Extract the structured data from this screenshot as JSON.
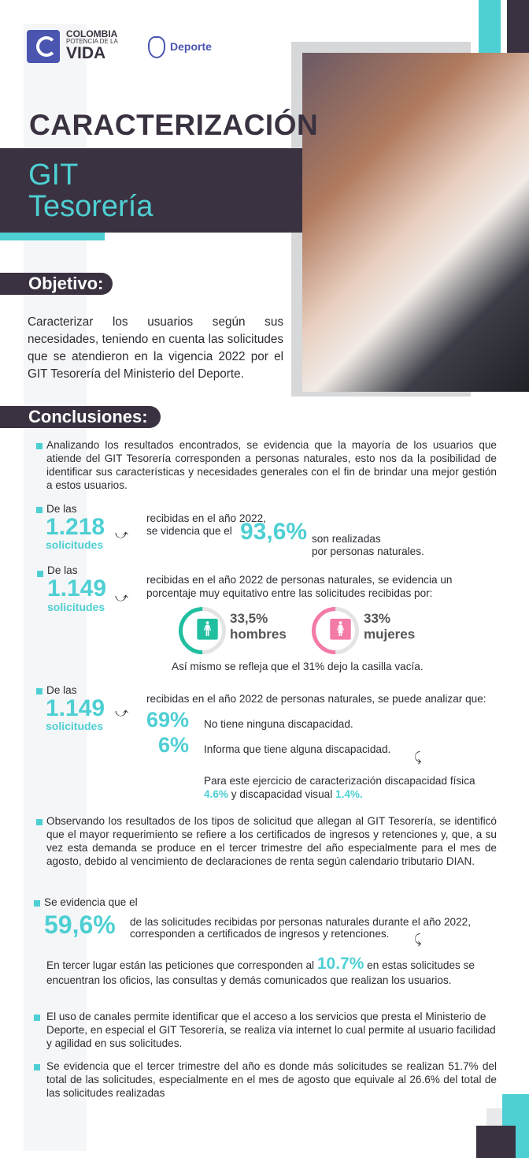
{
  "header": {
    "logo_line1": "COLOMBIA",
    "logo_line2": "POTENCIA DE LA",
    "logo_line3": "VIDA",
    "ministry": "Deporte"
  },
  "title": "CARACTERIZACIÓN",
  "subtitle_line1": "GIT",
  "subtitle_line2": "Tesorería",
  "objective": {
    "heading": "Objetivo:",
    "text": "Caracterizar los usuarios según sus necesidades, teniendo en cuenta las solicitudes que se atendieron en la vigencia 2022 por el GIT Tesorería del Ministerio del Deporte."
  },
  "conclusions": {
    "heading": "Conclusiones:",
    "p1": "Analizando los resultados encontrados, se evidencia que la mayoría de los usuarios que atiende del GIT Tesorería corresponden a personas naturales, esto nos da la posibilidad de identificar sus características y necesidades generales con el fin de brindar una mejor gestión a estos usuarios.",
    "s1": {
      "lead": "De las",
      "number": "1.218",
      "unit": "solicitudes",
      "t1": "recibidas en el año 2022,",
      "t2": "se videncia que el",
      "pct": "93,6%",
      "t3": "son realizadas",
      "t4": "por personas naturales."
    },
    "s2": {
      "lead": "De las",
      "number": "1.149",
      "unit": "solicitudes",
      "text": "recibidas en el año 2022 de personas naturales, se evidencia un porcentaje muy equitativo entre las solicitudes recibidas por:",
      "men_pct": "33,5%",
      "men": "hombres",
      "women_pct": "33%",
      "women": "mujeres",
      "men_value": 33.5,
      "women_value": 33,
      "men_color": "#1fbfa0",
      "women_color": "#f47aa8",
      "note": "Así mismo se refleja que el 31% dejo la casilla vacía."
    },
    "s3": {
      "lead": "De las",
      "number": "1.149",
      "unit": "solicitudes",
      "text": "recibidas en el año 2022 de personas naturales, se puede analizar que:",
      "p1": "69%",
      "l1": "No tiene ninguna discapacidad.",
      "p2": "6%",
      "l2": "Informa que tiene alguna discapacidad.",
      "n1": "Para este ejercicio de caracterización discapacidad física",
      "n2": "4.6%",
      "n3": "y discapacidad visual",
      "n4": "1.4%."
    },
    "p2": "Observando los resultados de los tipos de solicitud que allegan al GIT Tesorería, se identificó que el mayor requerimiento se refiere a los certificados de ingresos y retenciones y, que, a su vez esta demanda se produce en el tercer trimestre del año especialmente para el mes de agosto, debido al vencimiento de declaraciones de renta según calendario tributario DIAN.",
    "s4": {
      "lead": "Se evidencia que el",
      "pct": "59,6%",
      "t1": "de las solicitudes recibidas por personas naturales durante el año 2022,",
      "t2": "corresponden a certificados de ingresos y retenciones.",
      "t3": "En tercer lugar están las peticiones que corresponden al",
      "pct2": "10.7%",
      "t4": "en estas solicitudes se encuentran los oficios, las consultas y demás comunicados que realizan los usuarios."
    },
    "p3": "El uso de canales permite identificar que el acceso a los servicios que presta el Ministerio de Deporte, en especial el GIT Tesorería, se realiza vía internet lo cual permite al usuario facilidad y agilidad en sus solicitudes.",
    "p4": "Se evidencia que el tercer trimestre del año es donde más solicitudes se realizan 51.7% del total de las solicitudes, especialmente en el mes de agosto que equivale al 26.6% del total de las solicitudes realizadas"
  },
  "colors": {
    "accent": "#4ecfd3",
    "dark": "#3a3240"
  }
}
